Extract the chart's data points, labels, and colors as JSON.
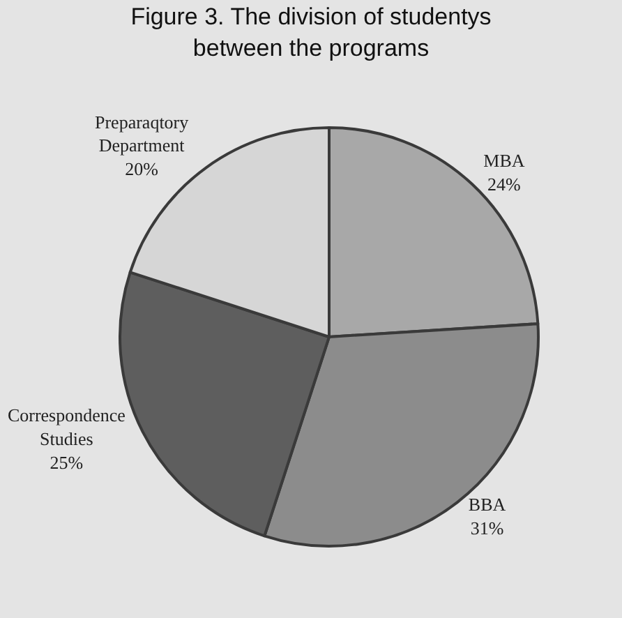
{
  "chart_data": {
    "type": "pie",
    "title": "Figure 3. The division of studentys\nbetween the programs",
    "categories": [
      "MBA",
      "BBA",
      "Correspondence Studies",
      "Preparaqtory Department"
    ],
    "values": [
      24,
      31,
      25,
      20
    ],
    "value_labels": [
      "24%",
      "31%",
      "25%",
      "20%"
    ],
    "colors": [
      "#a8a8a8",
      "#8c8c8c",
      "#5e5e5e",
      "#d6d6d6"
    ],
    "legend": false
  }
}
